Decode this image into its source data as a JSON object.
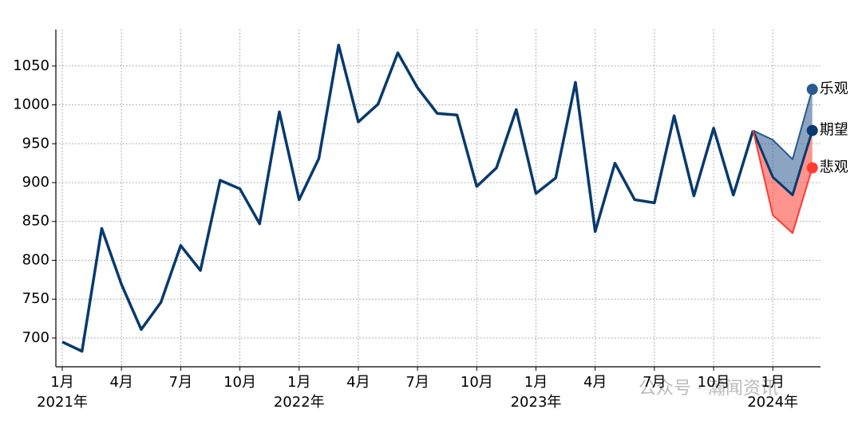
{
  "chart_data": {
    "type": "line",
    "x": [
      "2021-01",
      "2021-02",
      "2021-03",
      "2021-04",
      "2021-05",
      "2021-06",
      "2021-07",
      "2021-08",
      "2021-09",
      "2021-10",
      "2021-11",
      "2021-12",
      "2022-01",
      "2022-02",
      "2022-03",
      "2022-04",
      "2022-05",
      "2022-06",
      "2022-07",
      "2022-08",
      "2022-09",
      "2022-10",
      "2022-11",
      "2022-12",
      "2023-01",
      "2023-02",
      "2023-03",
      "2023-04",
      "2023-05",
      "2023-06",
      "2023-07",
      "2023-08",
      "2023-09",
      "2023-10",
      "2023-11",
      "2023-12",
      "2024-01",
      "2024-02",
      "2024-03"
    ],
    "series": [
      {
        "name": null,
        "color": "#073a6e",
        "values": [
          695,
          683,
          841,
          769,
          711,
          746,
          819,
          787,
          903,
          892,
          847,
          991,
          878,
          931,
          1077,
          978,
          1001,
          1067,
          1022,
          989,
          987,
          895,
          919,
          994,
          886,
          906,
          1029,
          837,
          925,
          878,
          874,
          986,
          883,
          970,
          884,
          967,
          null,
          null,
          null
        ]
      },
      {
        "name": "乐观",
        "color": "#2a5a8f",
        "values": [
          null,
          null,
          null,
          null,
          null,
          null,
          null,
          null,
          null,
          null,
          null,
          null,
          null,
          null,
          null,
          null,
          null,
          null,
          null,
          null,
          null,
          null,
          null,
          null,
          null,
          null,
          null,
          null,
          null,
          null,
          null,
          null,
          null,
          null,
          null,
          967,
          955,
          930,
          1020
        ]
      },
      {
        "name": "期望",
        "color": "#073a6e",
        "values": [
          null,
          null,
          null,
          null,
          null,
          null,
          null,
          null,
          null,
          null,
          null,
          null,
          null,
          null,
          null,
          null,
          null,
          null,
          null,
          null,
          null,
          null,
          null,
          null,
          null,
          null,
          null,
          null,
          null,
          null,
          null,
          null,
          null,
          null,
          null,
          967,
          907,
          884,
          967
        ]
      },
      {
        "name": "悲观",
        "color": "#ff3b30",
        "values": [
          null,
          null,
          null,
          null,
          null,
          null,
          null,
          null,
          null,
          null,
          null,
          null,
          null,
          null,
          null,
          null,
          null,
          null,
          null,
          null,
          null,
          null,
          null,
          null,
          null,
          null,
          null,
          null,
          null,
          null,
          null,
          null,
          null,
          null,
          null,
          967,
          858,
          835,
          919
        ]
      }
    ],
    "ylim": [
      663,
      1097
    ],
    "yticks": [
      700,
      750,
      800,
      850,
      900,
      950,
      1000,
      1050
    ],
    "xticks": [
      {
        "value": "2021-01",
        "label": "1月"
      },
      {
        "value": "2021-04",
        "label": "4月"
      },
      {
        "value": "2021-07",
        "label": "7月"
      },
      {
        "value": "2021-10",
        "label": "10月"
      },
      {
        "value": "2022-01",
        "label": "1月"
      },
      {
        "value": "2022-04",
        "label": "4月"
      },
      {
        "value": "2022-07",
        "label": "7月"
      },
      {
        "value": "2022-10",
        "label": "10月"
      },
      {
        "value": "2023-01",
        "label": "1月"
      },
      {
        "value": "2023-04",
        "label": "4月"
      },
      {
        "value": "2023-07",
        "label": "7月"
      },
      {
        "value": "2023-10",
        "label": "10月"
      },
      {
        "value": "2024-01",
        "label": "1月"
      }
    ],
    "year_labels": [
      {
        "value": "2021-01",
        "label": "2021年"
      },
      {
        "value": "2022-01",
        "label": "2022年"
      },
      {
        "value": "2023-01",
        "label": "2023年"
      },
      {
        "value": "2024-01",
        "label": "2024年"
      }
    ],
    "grid": true,
    "watermark": "公众号 · 瀚闻资讯"
  }
}
